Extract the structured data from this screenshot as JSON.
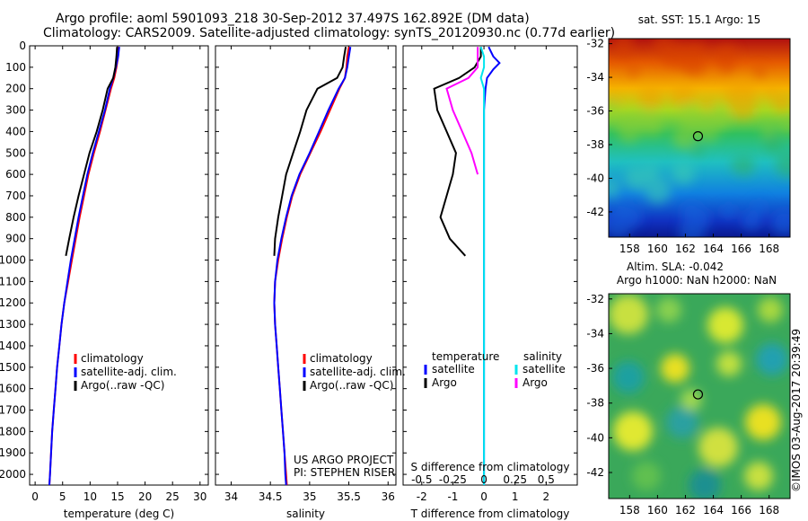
{
  "header": {
    "line1": "Argo profile: aoml 5901093_218 30-Sep-2012 37.497S 162.892E (DM data)",
    "line2": "Climatology: CARS2009. Satellite-adjusted climatology: synTS_20120930.nc (0.77d earlier)"
  },
  "credit": "©IMOS 03-Aug-2017 20:39:49",
  "colors": {
    "climatology": "#ff0000",
    "satellite": "#0000ff",
    "argo": "#000000",
    "sal_satellite": "#00e5ee",
    "sal_argo": "#ff00ff"
  },
  "chart_data": [
    {
      "type": "line",
      "id": "temperature",
      "xlabel": "temperature (deg C)",
      "ylim": [
        2050,
        0
      ],
      "xlim": [
        -1,
        31.5
      ],
      "xticks": [
        0,
        5,
        10,
        15,
        20,
        25,
        30
      ],
      "yticks": [
        0,
        100,
        200,
        300,
        400,
        500,
        600,
        700,
        800,
        900,
        1000,
        1100,
        1200,
        1300,
        1400,
        1500,
        1600,
        1700,
        1800,
        1900,
        2000
      ],
      "legend": [
        "climatology",
        "satellite-adj. clim.",
        "Argo(..raw -QC)"
      ],
      "series": [
        {
          "name": "climatology",
          "color": "#ff0000",
          "points": [
            [
              15.2,
              5
            ],
            [
              15.1,
              50
            ],
            [
              14.8,
              100
            ],
            [
              14.4,
              150
            ],
            [
              13.8,
              200
            ],
            [
              12.8,
              300
            ],
            [
              11.8,
              400
            ],
            [
              10.7,
              500
            ],
            [
              9.7,
              600
            ],
            [
              8.9,
              700
            ],
            [
              8.1,
              800
            ],
            [
              7.4,
              900
            ],
            [
              6.7,
              1000
            ],
            [
              6.0,
              1100
            ],
            [
              5.3,
              1200
            ],
            [
              4.8,
              1300
            ],
            [
              4.4,
              1400
            ],
            [
              4.0,
              1500
            ],
            [
              3.7,
              1600
            ],
            [
              3.4,
              1700
            ],
            [
              3.1,
              1800
            ],
            [
              2.9,
              1900
            ],
            [
              2.7,
              2000
            ],
            [
              2.6,
              2050
            ]
          ]
        },
        {
          "name": "satellite-adj. clim.",
          "color": "#0000ff",
          "points": [
            [
              15.3,
              5
            ],
            [
              15.1,
              50
            ],
            [
              14.7,
              100
            ],
            [
              14.2,
              150
            ],
            [
              13.6,
              200
            ],
            [
              12.7,
              300
            ],
            [
              11.6,
              400
            ],
            [
              10.5,
              500
            ],
            [
              9.5,
              600
            ],
            [
              8.7,
              700
            ],
            [
              7.9,
              800
            ],
            [
              7.2,
              900
            ],
            [
              6.5,
              1000
            ],
            [
              5.9,
              1100
            ],
            [
              5.3,
              1200
            ],
            [
              4.8,
              1300
            ],
            [
              4.4,
              1400
            ],
            [
              4.0,
              1500
            ],
            [
              3.7,
              1600
            ],
            [
              3.4,
              1700
            ],
            [
              3.1,
              1800
            ],
            [
              2.9,
              1900
            ],
            [
              2.7,
              2000
            ],
            [
              2.6,
              2050
            ]
          ]
        },
        {
          "name": "Argo(..raw -QC)",
          "color": "#000000",
          "points": [
            [
              14.9,
              5
            ],
            [
              14.8,
              50
            ],
            [
              14.6,
              100
            ],
            [
              14.2,
              150
            ],
            [
              13.2,
              200
            ],
            [
              12.3,
              300
            ],
            [
              11.2,
              400
            ],
            [
              9.9,
              500
            ],
            [
              8.9,
              600
            ],
            [
              7.9,
              700
            ],
            [
              7.0,
              800
            ],
            [
              6.2,
              900
            ],
            [
              5.6,
              980
            ]
          ]
        }
      ]
    },
    {
      "type": "line",
      "id": "salinity",
      "xlabel": "salinity",
      "ylim": [
        2050,
        0
      ],
      "xlim": [
        33.8,
        36.1
      ],
      "xticks": [
        34,
        34.5,
        35,
        35.5,
        36
      ],
      "legend": [
        "climatology",
        "satellite-adj. clim.",
        "Argo(..raw -QC)"
      ],
      "annotation": [
        "US ARGO PROJECT",
        "PI: STEPHEN RISER"
      ],
      "series": [
        {
          "name": "climatology",
          "color": "#ff0000",
          "points": [
            [
              35.5,
              5
            ],
            [
              35.48,
              50
            ],
            [
              35.47,
              100
            ],
            [
              35.45,
              150
            ],
            [
              35.38,
              200
            ],
            [
              35.26,
              300
            ],
            [
              35.14,
              400
            ],
            [
              35.01,
              500
            ],
            [
              34.88,
              600
            ],
            [
              34.78,
              700
            ],
            [
              34.71,
              800
            ],
            [
              34.65,
              900
            ],
            [
              34.6,
              1000
            ],
            [
              34.56,
              1100
            ],
            [
              34.55,
              1200
            ],
            [
              34.56,
              1300
            ],
            [
              34.58,
              1400
            ],
            [
              34.6,
              1500
            ],
            [
              34.62,
              1600
            ],
            [
              34.64,
              1700
            ],
            [
              34.66,
              1800
            ],
            [
              34.68,
              1900
            ],
            [
              34.7,
              2000
            ],
            [
              34.71,
              2050
            ]
          ]
        },
        {
          "name": "satellite-adj. clim.",
          "color": "#0000ff",
          "points": [
            [
              35.52,
              5
            ],
            [
              35.5,
              50
            ],
            [
              35.48,
              100
            ],
            [
              35.45,
              150
            ],
            [
              35.37,
              200
            ],
            [
              35.24,
              300
            ],
            [
              35.12,
              400
            ],
            [
              35.0,
              500
            ],
            [
              34.87,
              600
            ],
            [
              34.77,
              700
            ],
            [
              34.7,
              800
            ],
            [
              34.64,
              900
            ],
            [
              34.59,
              1000
            ],
            [
              34.56,
              1100
            ],
            [
              34.55,
              1200
            ],
            [
              34.56,
              1300
            ],
            [
              34.58,
              1400
            ],
            [
              34.6,
              1500
            ],
            [
              34.62,
              1600
            ],
            [
              34.64,
              1700
            ],
            [
              34.66,
              1800
            ],
            [
              34.68,
              1900
            ],
            [
              34.69,
              2000
            ],
            [
              34.7,
              2050
            ]
          ]
        },
        {
          "name": "Argo(..raw -QC)",
          "color": "#000000",
          "points": [
            [
              35.46,
              5
            ],
            [
              35.44,
              50
            ],
            [
              35.42,
              100
            ],
            [
              35.35,
              150
            ],
            [
              35.1,
              200
            ],
            [
              34.96,
              300
            ],
            [
              34.88,
              400
            ],
            [
              34.79,
              500
            ],
            [
              34.7,
              600
            ],
            [
              34.65,
              700
            ],
            [
              34.6,
              800
            ],
            [
              34.56,
              900
            ],
            [
              34.55,
              980
            ]
          ]
        }
      ]
    },
    {
      "type": "line",
      "id": "difference",
      "xlabel": "T difference from climatology",
      "xlabel_top": "S difference from climatology",
      "ylim": [
        2050,
        0
      ],
      "xlim": [
        -2.6,
        3
      ],
      "xticks": [
        -2,
        -1,
        0,
        1,
        2
      ],
      "xticks_s": [
        "-0.5",
        "-0.25",
        "0",
        "0.25",
        "0.5"
      ],
      "legend_t": [
        "temperature",
        "satellite",
        "Argo"
      ],
      "legend_s": [
        "salinity",
        "satellite",
        "Argo"
      ],
      "series": [
        {
          "name": "temperature satellite",
          "color": "#0000ff",
          "points": [
            [
              0.15,
              5
            ],
            [
              0.2,
              20
            ],
            [
              0.3,
              50
            ],
            [
              0.5,
              80
            ],
            [
              0.3,
              110
            ],
            [
              0.1,
              150
            ],
            [
              0.05,
              200
            ],
            [
              0,
              300
            ],
            [
              0,
              400
            ],
            [
              0,
              600
            ],
            [
              0,
              1000
            ],
            [
              0,
              1500
            ],
            [
              0,
              2050
            ]
          ]
        },
        {
          "name": "temperature Argo",
          "color": "#000000",
          "points": [
            [
              -0.1,
              5
            ],
            [
              -0.1,
              50
            ],
            [
              -0.3,
              100
            ],
            [
              -0.8,
              150
            ],
            [
              -1.6,
              200
            ],
            [
              -1.5,
              300
            ],
            [
              -1.2,
              400
            ],
            [
              -0.9,
              500
            ],
            [
              -1.0,
              600
            ],
            [
              -1.2,
              700
            ],
            [
              -1.4,
              800
            ],
            [
              -1.1,
              900
            ],
            [
              -0.6,
              980
            ]
          ]
        },
        {
          "name": "salinity satellite",
          "color": "#00e5ee",
          "points": [
            [
              -0.1,
              5
            ],
            [
              0,
              50
            ],
            [
              0,
              100
            ],
            [
              -0.1,
              150
            ],
            [
              0,
              200
            ],
            [
              0,
              300
            ],
            [
              0,
              400
            ],
            [
              0,
              600
            ],
            [
              0,
              1000
            ],
            [
              0,
              1500
            ],
            [
              0,
              2050
            ]
          ]
        },
        {
          "name": "salinity Argo",
          "color": "#ff00ff",
          "points": [
            [
              -0.2,
              5
            ],
            [
              -0.2,
              50
            ],
            [
              -0.2,
              100
            ],
            [
              -0.5,
              150
            ],
            [
              -1.2,
              200
            ],
            [
              -1.0,
              300
            ],
            [
              -0.7,
              400
            ],
            [
              -0.4,
              500
            ],
            [
              -0.2,
              600
            ]
          ]
        }
      ]
    },
    {
      "type": "heatmap",
      "id": "sst-map",
      "title": "sat. SST: 15.1  Argo: 15",
      "xticks": [
        158,
        160,
        162,
        164,
        166,
        168
      ],
      "yticks": [
        -32,
        -34,
        -36,
        -38,
        -40,
        -42
      ],
      "xlim": [
        156.5,
        169.5
      ],
      "ylim": [
        -43.5,
        -31.7
      ],
      "marker": [
        162.9,
        -37.5
      ],
      "palette": "jet"
    },
    {
      "type": "heatmap",
      "id": "sla-map",
      "title": "Altim. SLA: -0.042",
      "subtitle": "Argo h1000: NaN h2000: NaN",
      "xticks": [
        158,
        160,
        162,
        164,
        166,
        168
      ],
      "yticks": [
        -32,
        -34,
        -36,
        -38,
        -40,
        -42
      ],
      "xlim": [
        156.5,
        169.5
      ],
      "ylim": [
        -43.5,
        -31.7
      ],
      "marker": [
        162.9,
        -37.5
      ],
      "palette": "jet"
    }
  ]
}
